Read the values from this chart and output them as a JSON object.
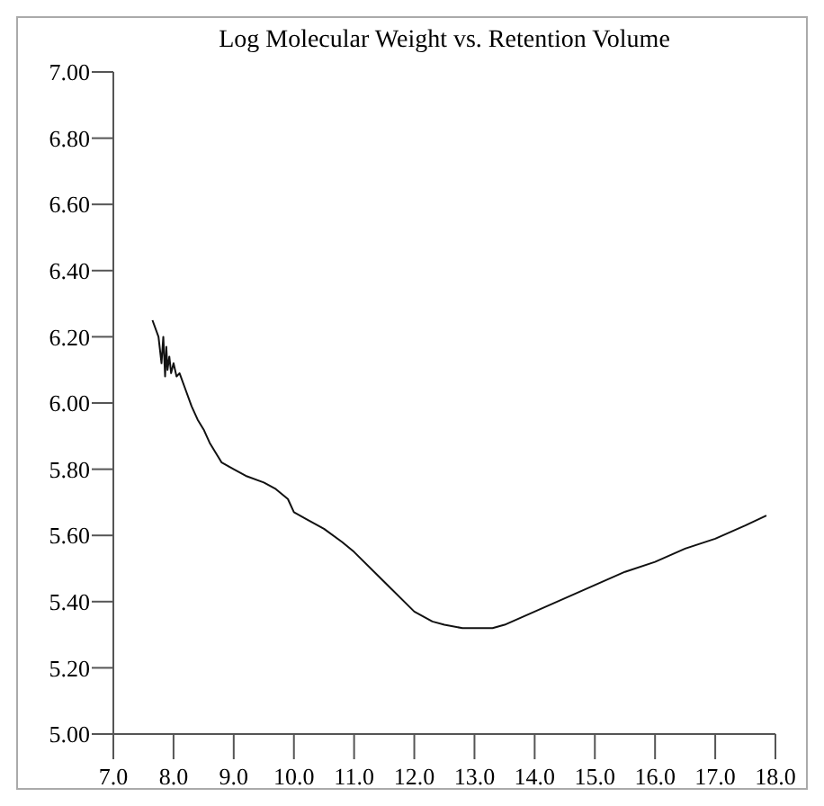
{
  "chart_data": {
    "type": "line",
    "title": "Log Molecular Weight vs. Retention Volume",
    "series": [
      {
        "color": "#111111",
        "x": [
          7.65,
          7.75,
          7.8,
          7.83,
          7.86,
          7.88,
          7.9,
          7.93,
          7.96,
          8.0,
          8.05,
          8.1,
          8.2,
          8.3,
          8.4,
          8.5,
          8.6,
          8.7,
          8.8,
          8.9,
          9.0,
          9.2,
          9.5,
          9.7,
          9.9,
          10.0,
          10.2,
          10.5,
          10.8,
          11.0,
          11.5,
          12.0,
          12.3,
          12.5,
          12.8,
          13.0,
          13.3,
          13.5,
          14.0,
          14.5,
          15.0,
          15.5,
          16.0,
          16.5,
          17.0,
          17.5,
          17.85
        ],
        "values": [
          6.25,
          6.2,
          6.12,
          6.2,
          6.08,
          6.17,
          6.1,
          6.14,
          6.09,
          6.12,
          6.08,
          6.09,
          6.04,
          5.99,
          5.95,
          5.92,
          5.88,
          5.85,
          5.82,
          5.81,
          5.8,
          5.78,
          5.76,
          5.74,
          5.71,
          5.67,
          5.65,
          5.62,
          5.58,
          5.55,
          5.46,
          5.37,
          5.34,
          5.33,
          5.32,
          5.32,
          5.32,
          5.33,
          5.37,
          5.41,
          5.45,
          5.49,
          5.52,
          5.56,
          5.59,
          5.63,
          5.66
        ]
      }
    ],
    "xlim": [
      7.0,
      18.0
    ],
    "ylim": [
      5.0,
      7.0
    ],
    "xticks": [
      {
        "value": 7,
        "label": "7.0"
      },
      {
        "value": 8,
        "label": "8.0"
      },
      {
        "value": 9,
        "label": "9.0"
      },
      {
        "value": 10,
        "label": "10.0"
      },
      {
        "value": 11,
        "label": "11.0"
      },
      {
        "value": 12,
        "label": "12.0"
      },
      {
        "value": 13,
        "label": "13.0"
      },
      {
        "value": 14,
        "label": "14.0"
      },
      {
        "value": 15,
        "label": "15.0"
      },
      {
        "value": 16,
        "label": "16.0"
      },
      {
        "value": 17,
        "label": "17.0"
      },
      {
        "value": 18,
        "label": "18.0"
      }
    ],
    "yticks": [
      {
        "value": 5,
        "label": "5.00"
      },
      {
        "value": 5.2,
        "label": "5.20"
      },
      {
        "value": 5.4,
        "label": "5.40"
      },
      {
        "value": 5.6,
        "label": "5.60"
      },
      {
        "value": 5.8,
        "label": "5.80"
      },
      {
        "value": 6,
        "label": "6.00"
      },
      {
        "value": 6.2,
        "label": "6.20"
      },
      {
        "value": 6.4,
        "label": "6.40"
      },
      {
        "value": 6.6,
        "label": "6.60"
      },
      {
        "value": 6.8,
        "label": "6.80"
      },
      {
        "value": 7,
        "label": "7.00"
      }
    ],
    "grid": false
  }
}
